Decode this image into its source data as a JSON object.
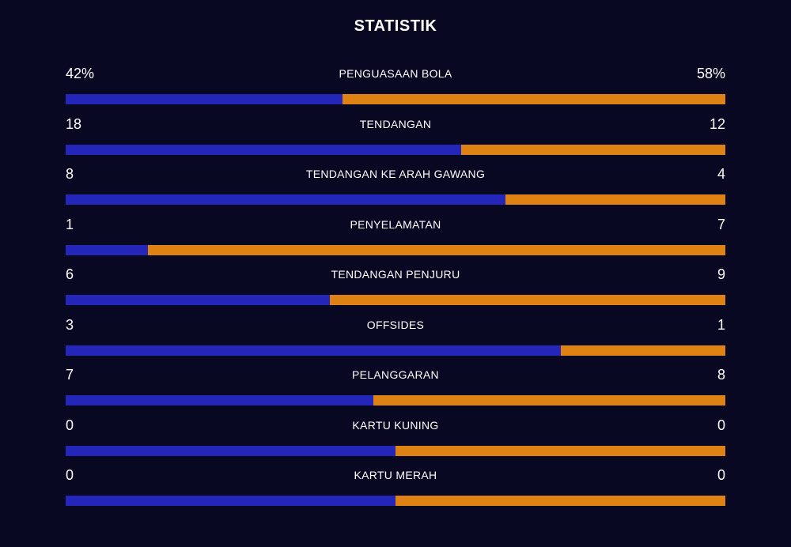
{
  "title": "STATISTIK",
  "colors": {
    "background": "#080823",
    "home_bar": "#2326b8",
    "away_bar": "#dd8213",
    "text": "#ffffff"
  },
  "stats": [
    {
      "label": "PENGUASAAN BOLA",
      "home": "42%",
      "away": "58%",
      "home_share": 0.42
    },
    {
      "label": "TENDANGAN",
      "home": "18",
      "away": "12",
      "home_share": 0.6
    },
    {
      "label": "TENDANGAN KE ARAH GAWANG",
      "home": "8",
      "away": "4",
      "home_share": 0.667
    },
    {
      "label": "PENYELAMATAN",
      "home": "1",
      "away": "7",
      "home_share": 0.125
    },
    {
      "label": "TENDANGAN PENJURU",
      "home": "6",
      "away": "9",
      "home_share": 0.4
    },
    {
      "label": "OFFSIDES",
      "home": "3",
      "away": "1",
      "home_share": 0.75
    },
    {
      "label": "PELANGGARAN",
      "home": "7",
      "away": "8",
      "home_share": 0.467
    },
    {
      "label": "KARTU KUNING",
      "home": "0",
      "away": "0",
      "home_share": 0.5
    },
    {
      "label": "KARTU MERAH",
      "home": "0",
      "away": "0",
      "home_share": 0.5
    }
  ]
}
